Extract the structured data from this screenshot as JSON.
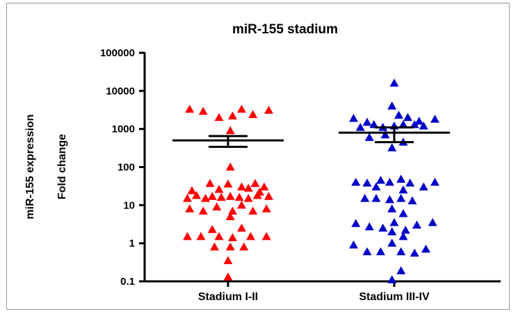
{
  "chart_data": {
    "type": "scatter",
    "title": "miR-155 stadium",
    "ylabel_line1": "miR-155 expression",
    "ylabel_line2": "Fold change",
    "y_scale": "log",
    "ylim": [
      0.1,
      100000
    ],
    "y_ticks": [
      "0.1",
      "1",
      "10",
      "100",
      "1000",
      "10000",
      "100000"
    ],
    "categories": [
      "Stadium I-II",
      "Stadium III-IV"
    ],
    "colors": [
      "#ff0000",
      "#0000c8"
    ],
    "marker": "triangle",
    "series": [
      {
        "category": "Stadium I-II",
        "mean": 500,
        "sem_low": 340,
        "sem_high": 650,
        "points": [
          {
            "o": -0.85,
            "y": 3300
          },
          {
            "o": -0.55,
            "y": 2900
          },
          {
            "o": -0.2,
            "y": 2000
          },
          {
            "o": 0.1,
            "y": 2200
          },
          {
            "o": 0.3,
            "y": 3300
          },
          {
            "o": 0.55,
            "y": 2400
          },
          {
            "o": 0.9,
            "y": 3100
          },
          {
            "o": 0.05,
            "y": 900
          },
          {
            "o": 0.05,
            "y": 100
          },
          {
            "o": -0.4,
            "y": 37
          },
          {
            "o": 0.0,
            "y": 36
          },
          {
            "o": 0.3,
            "y": 30
          },
          {
            "o": 0.6,
            "y": 37
          },
          {
            "o": 0.8,
            "y": 30
          },
          {
            "o": -0.8,
            "y": 24
          },
          {
            "o": -0.2,
            "y": 26
          },
          {
            "o": 0.45,
            "y": 28
          },
          {
            "o": 0.7,
            "y": 22
          },
          {
            "o": -0.9,
            "y": 15
          },
          {
            "o": -0.7,
            "y": 18
          },
          {
            "o": -0.5,
            "y": 15
          },
          {
            "o": -0.35,
            "y": 17
          },
          {
            "o": -0.15,
            "y": 16
          },
          {
            "o": 0.05,
            "y": 17
          },
          {
            "o": 0.25,
            "y": 16
          },
          {
            "o": 0.45,
            "y": 15
          },
          {
            "o": 0.65,
            "y": 18
          },
          {
            "o": 0.9,
            "y": 17
          },
          {
            "o": -0.85,
            "y": 8
          },
          {
            "o": -0.55,
            "y": 7
          },
          {
            "o": -0.25,
            "y": 9
          },
          {
            "o": 0.1,
            "y": 7
          },
          {
            "o": 0.3,
            "y": 10
          },
          {
            "o": 0.55,
            "y": 7
          },
          {
            "o": 0.85,
            "y": 8
          },
          {
            "o": 0.05,
            "y": 5
          },
          {
            "o": -0.35,
            "y": 2.3
          },
          {
            "o": 0.3,
            "y": 2.5
          },
          {
            "o": -0.9,
            "y": 1.5
          },
          {
            "o": -0.6,
            "y": 1.5
          },
          {
            "o": -0.2,
            "y": 1.5
          },
          {
            "o": 0.1,
            "y": 1.4
          },
          {
            "o": 0.5,
            "y": 1.5
          },
          {
            "o": 0.85,
            "y": 1.5
          },
          {
            "o": -0.3,
            "y": 0.8
          },
          {
            "o": 0.05,
            "y": 0.8
          },
          {
            "o": 0.35,
            "y": 0.8
          },
          {
            "o": 0.0,
            "y": 0.35
          },
          {
            "o": 0.0,
            "y": 0.13
          }
        ]
      },
      {
        "category": "Stadium III-IV",
        "mean": 800,
        "sem_low": 450,
        "sem_high": 1100,
        "points": [
          {
            "o": 0.0,
            "y": 16000
          },
          {
            "o": -0.05,
            "y": 4000
          },
          {
            "o": -0.9,
            "y": 1900
          },
          {
            "o": -0.6,
            "y": 1500
          },
          {
            "o": 0.1,
            "y": 2300
          },
          {
            "o": 0.3,
            "y": 2000
          },
          {
            "o": 0.55,
            "y": 1600
          },
          {
            "o": 0.9,
            "y": 1800
          },
          {
            "o": -0.75,
            "y": 1100
          },
          {
            "o": -0.45,
            "y": 1300
          },
          {
            "o": -0.25,
            "y": 1100
          },
          {
            "o": 0.0,
            "y": 1200
          },
          {
            "o": 0.2,
            "y": 1300
          },
          {
            "o": 0.45,
            "y": 1300
          },
          {
            "o": 0.65,
            "y": 1200
          },
          {
            "o": -0.55,
            "y": 600
          },
          {
            "o": -0.2,
            "y": 700
          },
          {
            "o": 0.2,
            "y": 450
          },
          {
            "o": -0.05,
            "y": 320
          },
          {
            "o": -0.85,
            "y": 40
          },
          {
            "o": -0.6,
            "y": 38
          },
          {
            "o": -0.3,
            "y": 45
          },
          {
            "o": -0.1,
            "y": 40
          },
          {
            "o": 0.15,
            "y": 48
          },
          {
            "o": 0.35,
            "y": 38
          },
          {
            "o": 0.65,
            "y": 30
          },
          {
            "o": 0.9,
            "y": 40
          },
          {
            "o": -0.4,
            "y": 30
          },
          {
            "o": 0.2,
            "y": 25
          },
          {
            "o": -0.65,
            "y": 15
          },
          {
            "o": -0.4,
            "y": 15
          },
          {
            "o": -0.1,
            "y": 14
          },
          {
            "o": 0.15,
            "y": 15
          },
          {
            "o": 0.4,
            "y": 13
          },
          {
            "o": -0.05,
            "y": 8
          },
          {
            "o": 0.2,
            "y": 6
          },
          {
            "o": -0.85,
            "y": 3.3
          },
          {
            "o": -0.55,
            "y": 2.7
          },
          {
            "o": -0.25,
            "y": 2.5
          },
          {
            "o": 0.0,
            "y": 3.5
          },
          {
            "o": 0.25,
            "y": 2.2
          },
          {
            "o": 0.5,
            "y": 3.0
          },
          {
            "o": 0.85,
            "y": 3.5
          },
          {
            "o": -0.05,
            "y": 2.0
          },
          {
            "o": 0.2,
            "y": 1.5
          },
          {
            "o": -0.9,
            "y": 0.9
          },
          {
            "o": -0.6,
            "y": 0.6
          },
          {
            "o": -0.3,
            "y": 0.6
          },
          {
            "o": -0.05,
            "y": 1.0
          },
          {
            "o": 0.15,
            "y": 0.6
          },
          {
            "o": 0.45,
            "y": 0.55
          },
          {
            "o": 0.7,
            "y": 0.7
          },
          {
            "o": 0.15,
            "y": 0.19
          },
          {
            "o": -0.05,
            "y": 0.11
          }
        ]
      }
    ]
  }
}
